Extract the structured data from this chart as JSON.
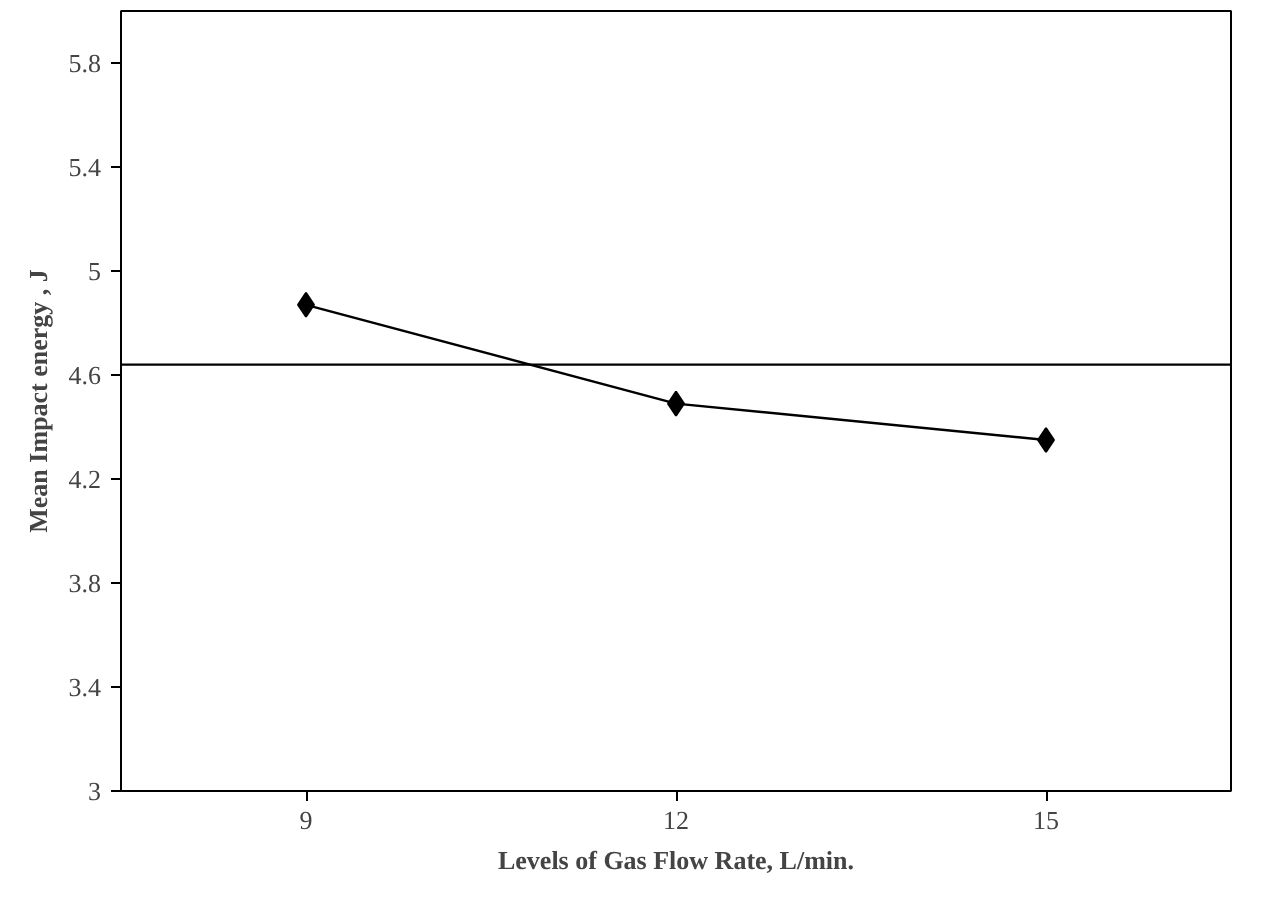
{
  "chart_data": {
    "type": "line",
    "xlabel": "Levels of Gas Flow Rate, L/min.",
    "ylabel": "Mean Impact energy , J",
    "categories": [
      "9",
      "12",
      "15"
    ],
    "series": [
      {
        "color": "#000000",
        "values": [
          4.87,
          4.49,
          4.35
        ]
      }
    ],
    "ylim": [
      3,
      6
    ],
    "yticks": [
      3,
      3.4,
      3.8,
      4.2,
      4.6,
      5,
      5.4,
      5.8
    ],
    "ref_lines": [
      {
        "axis": "y",
        "value": 4.64,
        "color": "#000000"
      }
    ],
    "marker": "diamond",
    "line_style": "solid"
  }
}
